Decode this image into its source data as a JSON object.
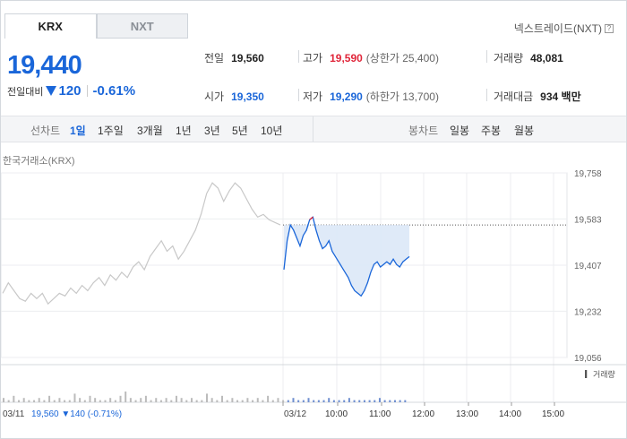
{
  "tabs": [
    {
      "label": "KRX",
      "active": true
    },
    {
      "label": "NXT",
      "active": false
    }
  ],
  "nxt_link": {
    "label": "넥스트레이드(NXT)",
    "help_icon": "question-box-icon"
  },
  "summary": {
    "price": "19,440",
    "change_label": "전일대비",
    "change": "120",
    "change_direction": "down",
    "change_pct": "-0.61%"
  },
  "stats": {
    "prev_close": {
      "label": "전일",
      "value": "19,560"
    },
    "high": {
      "label": "고가",
      "value": "19,590",
      "extra": "(상한가 25,400)"
    },
    "volume": {
      "label": "거래량",
      "value": "48,081"
    },
    "open": {
      "label": "시가",
      "value": "19,350"
    },
    "low": {
      "label": "저가",
      "value": "19,290",
      "extra": "(하한가 13,700)"
    },
    "amount": {
      "label": "거래대금",
      "value": "934 백만"
    }
  },
  "toolbar": {
    "line_chart_label": "선차트",
    "periods": [
      "1일",
      "1주일",
      "3개월",
      "1년",
      "3년",
      "5년",
      "10년"
    ],
    "active_period": "1일",
    "candle_chart_label": "봉차트",
    "candle_periods": [
      "일봉",
      "주봉",
      "월봉"
    ]
  },
  "market_label": "한국거래소(KRX)",
  "colors": {
    "up": "#e0263a",
    "down": "#1a66d9",
    "fill": "#dce8f7"
  },
  "chart_data": {
    "type": "line",
    "y_ticks": [
      "19,758",
      "19,583",
      "19,407",
      "19,232",
      "19,056"
    ],
    "ylim": [
      19056,
      19758
    ],
    "prev_close_line": 19560,
    "x_ticks": [
      "03/11",
      "03/12",
      "10:00",
      "11:00",
      "12:00",
      "13:00",
      "14:00",
      "15:00"
    ],
    "volume_legend": "거래량",
    "prev_day_info": {
      "date": "03/11",
      "close": "19,560",
      "change": "▼140",
      "pct": "(-0.71%)"
    },
    "series": [
      {
        "day": "03/11",
        "color": "#c8c8c8",
        "values": [
          19300,
          19340,
          19310,
          19280,
          19270,
          19300,
          19280,
          19300,
          19260,
          19280,
          19300,
          19290,
          19320,
          19300,
          19330,
          19310,
          19340,
          19360,
          19330,
          19370,
          19350,
          19380,
          19360,
          19400,
          19420,
          19390,
          19440,
          19470,
          19500,
          19460,
          19480,
          19430,
          19460,
          19500,
          19540,
          19600,
          19680,
          19720,
          19700,
          19650,
          19690,
          19720,
          19700,
          19660,
          19620,
          19590,
          19600,
          19580,
          19570,
          19560
        ]
      },
      {
        "day": "03/12",
        "color": "#1a66d9",
        "values": [
          19390,
          19500,
          19560,
          19540,
          19510,
          19480,
          19520,
          19540,
          19580,
          19590,
          19540,
          19500,
          19470,
          19480,
          19500,
          19460,
          19440,
          19420,
          19400,
          19380,
          19360,
          19330,
          19310,
          19300,
          19290,
          19310,
          19340,
          19380,
          19410,
          19420,
          19400,
          19410,
          19420,
          19410,
          19430,
          19410,
          19400,
          19420,
          19430,
          19440
        ]
      }
    ],
    "volume_values": [
      2,
      1,
      3,
      1,
      2,
      1,
      1,
      2,
      1,
      3,
      1,
      2,
      1,
      1,
      4,
      2,
      1,
      3,
      2,
      1,
      1,
      2,
      1,
      3,
      5,
      2,
      1,
      2,
      3,
      1,
      2,
      1,
      2,
      1,
      3,
      2,
      1,
      2,
      1,
      1,
      4,
      2,
      1,
      3,
      1,
      2,
      1,
      1,
      2,
      1,
      2,
      1,
      3,
      1,
      2,
      1,
      1,
      2,
      1,
      1,
      2,
      1,
      1,
      1,
      2,
      1,
      1,
      1,
      2,
      1,
      1,
      1,
      1,
      1,
      2,
      1,
      1,
      1,
      1,
      1
    ]
  }
}
